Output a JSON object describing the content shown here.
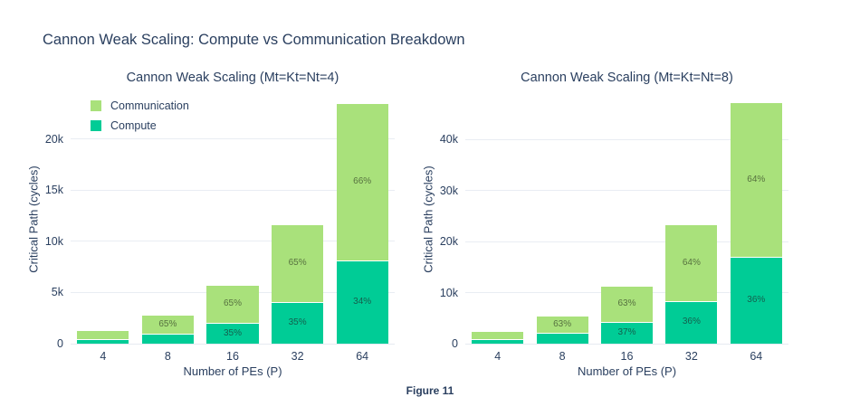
{
  "page": {
    "title": "Cannon Weak Scaling: Compute vs Communication Breakdown",
    "caption": "Figure 11"
  },
  "colors": {
    "text": "#2a3f5f",
    "gridline": "#e9edf3",
    "communication": "#a9e17b",
    "compute": "#00cc96"
  },
  "legend": {
    "items": [
      {
        "label": "Communication",
        "color": "#a9e17b"
      },
      {
        "label": "Compute",
        "color": "#00cc96"
      }
    ]
  },
  "chart_data": [
    {
      "type": "bar",
      "stacked": true,
      "title": "Cannon Weak Scaling (Mt=Kt=Nt=4)",
      "xlabel": "Number of PEs (P)",
      "ylabel": "Critical Path (cycles)",
      "categories": [
        "4",
        "8",
        "16",
        "32",
        "64"
      ],
      "series": [
        {
          "name": "Compute",
          "color": "#00cc96",
          "label_color": "#14604e",
          "values": [
            470,
            980,
            2000,
            4080,
            8100
          ],
          "bar_labels": [
            "",
            "",
            "35%",
            "35%",
            "34%"
          ]
        },
        {
          "name": "Communication",
          "color": "#a9e17b",
          "label_color": "#56713f",
          "values": [
            880,
            1820,
            3750,
            7620,
            15450
          ],
          "bar_labels": [
            "",
            "65%",
            "65%",
            "65%",
            "66%"
          ]
        }
      ],
      "totals": [
        1350,
        2800,
        5750,
        11700,
        23550
      ],
      "ylim": [
        0,
        24300
      ],
      "yticks": [
        {
          "v": 0,
          "label": "0"
        },
        {
          "v": 5000,
          "label": "5k"
        },
        {
          "v": 10000,
          "label": "10k"
        },
        {
          "v": 15000,
          "label": "15k"
        },
        {
          "v": 20000,
          "label": "20k"
        }
      ],
      "grid": true,
      "legend_position": "inside-top-left"
    },
    {
      "type": "bar",
      "stacked": true,
      "title": "Cannon Weak Scaling (Mt=Kt=Nt=8)",
      "xlabel": "Number of PEs (P)",
      "ylabel": "Critical Path (cycles)",
      "categories": [
        "4",
        "8",
        "16",
        "32",
        "64"
      ],
      "series": [
        {
          "name": "Compute",
          "color": "#00cc96",
          "label_color": "#14604e",
          "values": [
            950,
            2050,
            4200,
            8400,
            17000
          ],
          "bar_labels": [
            "",
            "",
            "37%",
            "36%",
            "36%"
          ]
        },
        {
          "name": "Communication",
          "color": "#a9e17b",
          "label_color": "#56713f",
          "values": [
            1600,
            3500,
            7150,
            14900,
            30200
          ],
          "bar_labels": [
            "",
            "63%",
            "63%",
            "64%",
            "64%"
          ]
        }
      ],
      "totals": [
        2550,
        5550,
        11350,
        23300,
        47200
      ],
      "ylim": [
        0,
        48700
      ],
      "yticks": [
        {
          "v": 0,
          "label": "0"
        },
        {
          "v": 10000,
          "label": "10k"
        },
        {
          "v": 20000,
          "label": "20k"
        },
        {
          "v": 30000,
          "label": "30k"
        },
        {
          "v": 40000,
          "label": "40k"
        }
      ],
      "grid": true,
      "legend_position": "none"
    }
  ]
}
